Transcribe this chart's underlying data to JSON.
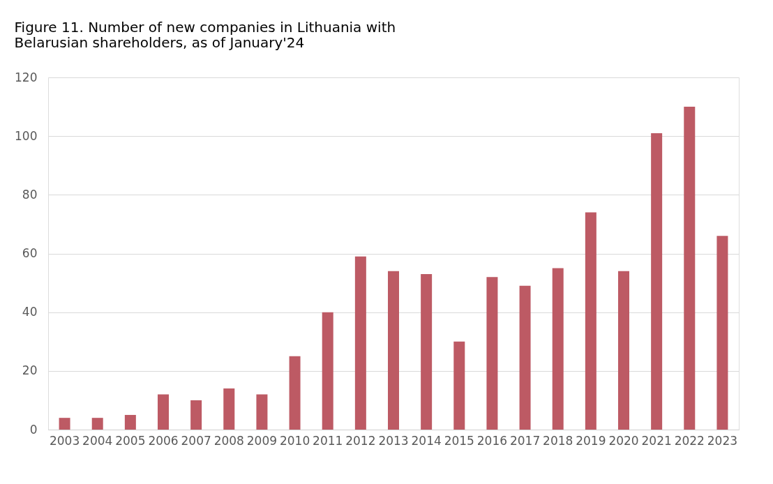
{
  "chart_data": {
    "type": "bar",
    "title": "Figure 11. Number of new companies in Lithuania with Belarusian shareholders, as of January'24",
    "categories": [
      "2003",
      "2004",
      "2005",
      "2006",
      "2007",
      "2008",
      "2009",
      "2010",
      "2011",
      "2012",
      "2013",
      "2014",
      "2015",
      "2016",
      "2017",
      "2018",
      "2019",
      "2020",
      "2021",
      "2022",
      "2023"
    ],
    "values": [
      4,
      4,
      5,
      12,
      10,
      14,
      12,
      25,
      40,
      59,
      54,
      53,
      30,
      52,
      49,
      55,
      74,
      54,
      101,
      110,
      66
    ],
    "color": "#bd5a64",
    "ylim": [
      0,
      120
    ],
    "yticks": [
      0,
      20,
      40,
      60,
      80,
      100,
      120
    ],
    "grid": "y"
  }
}
